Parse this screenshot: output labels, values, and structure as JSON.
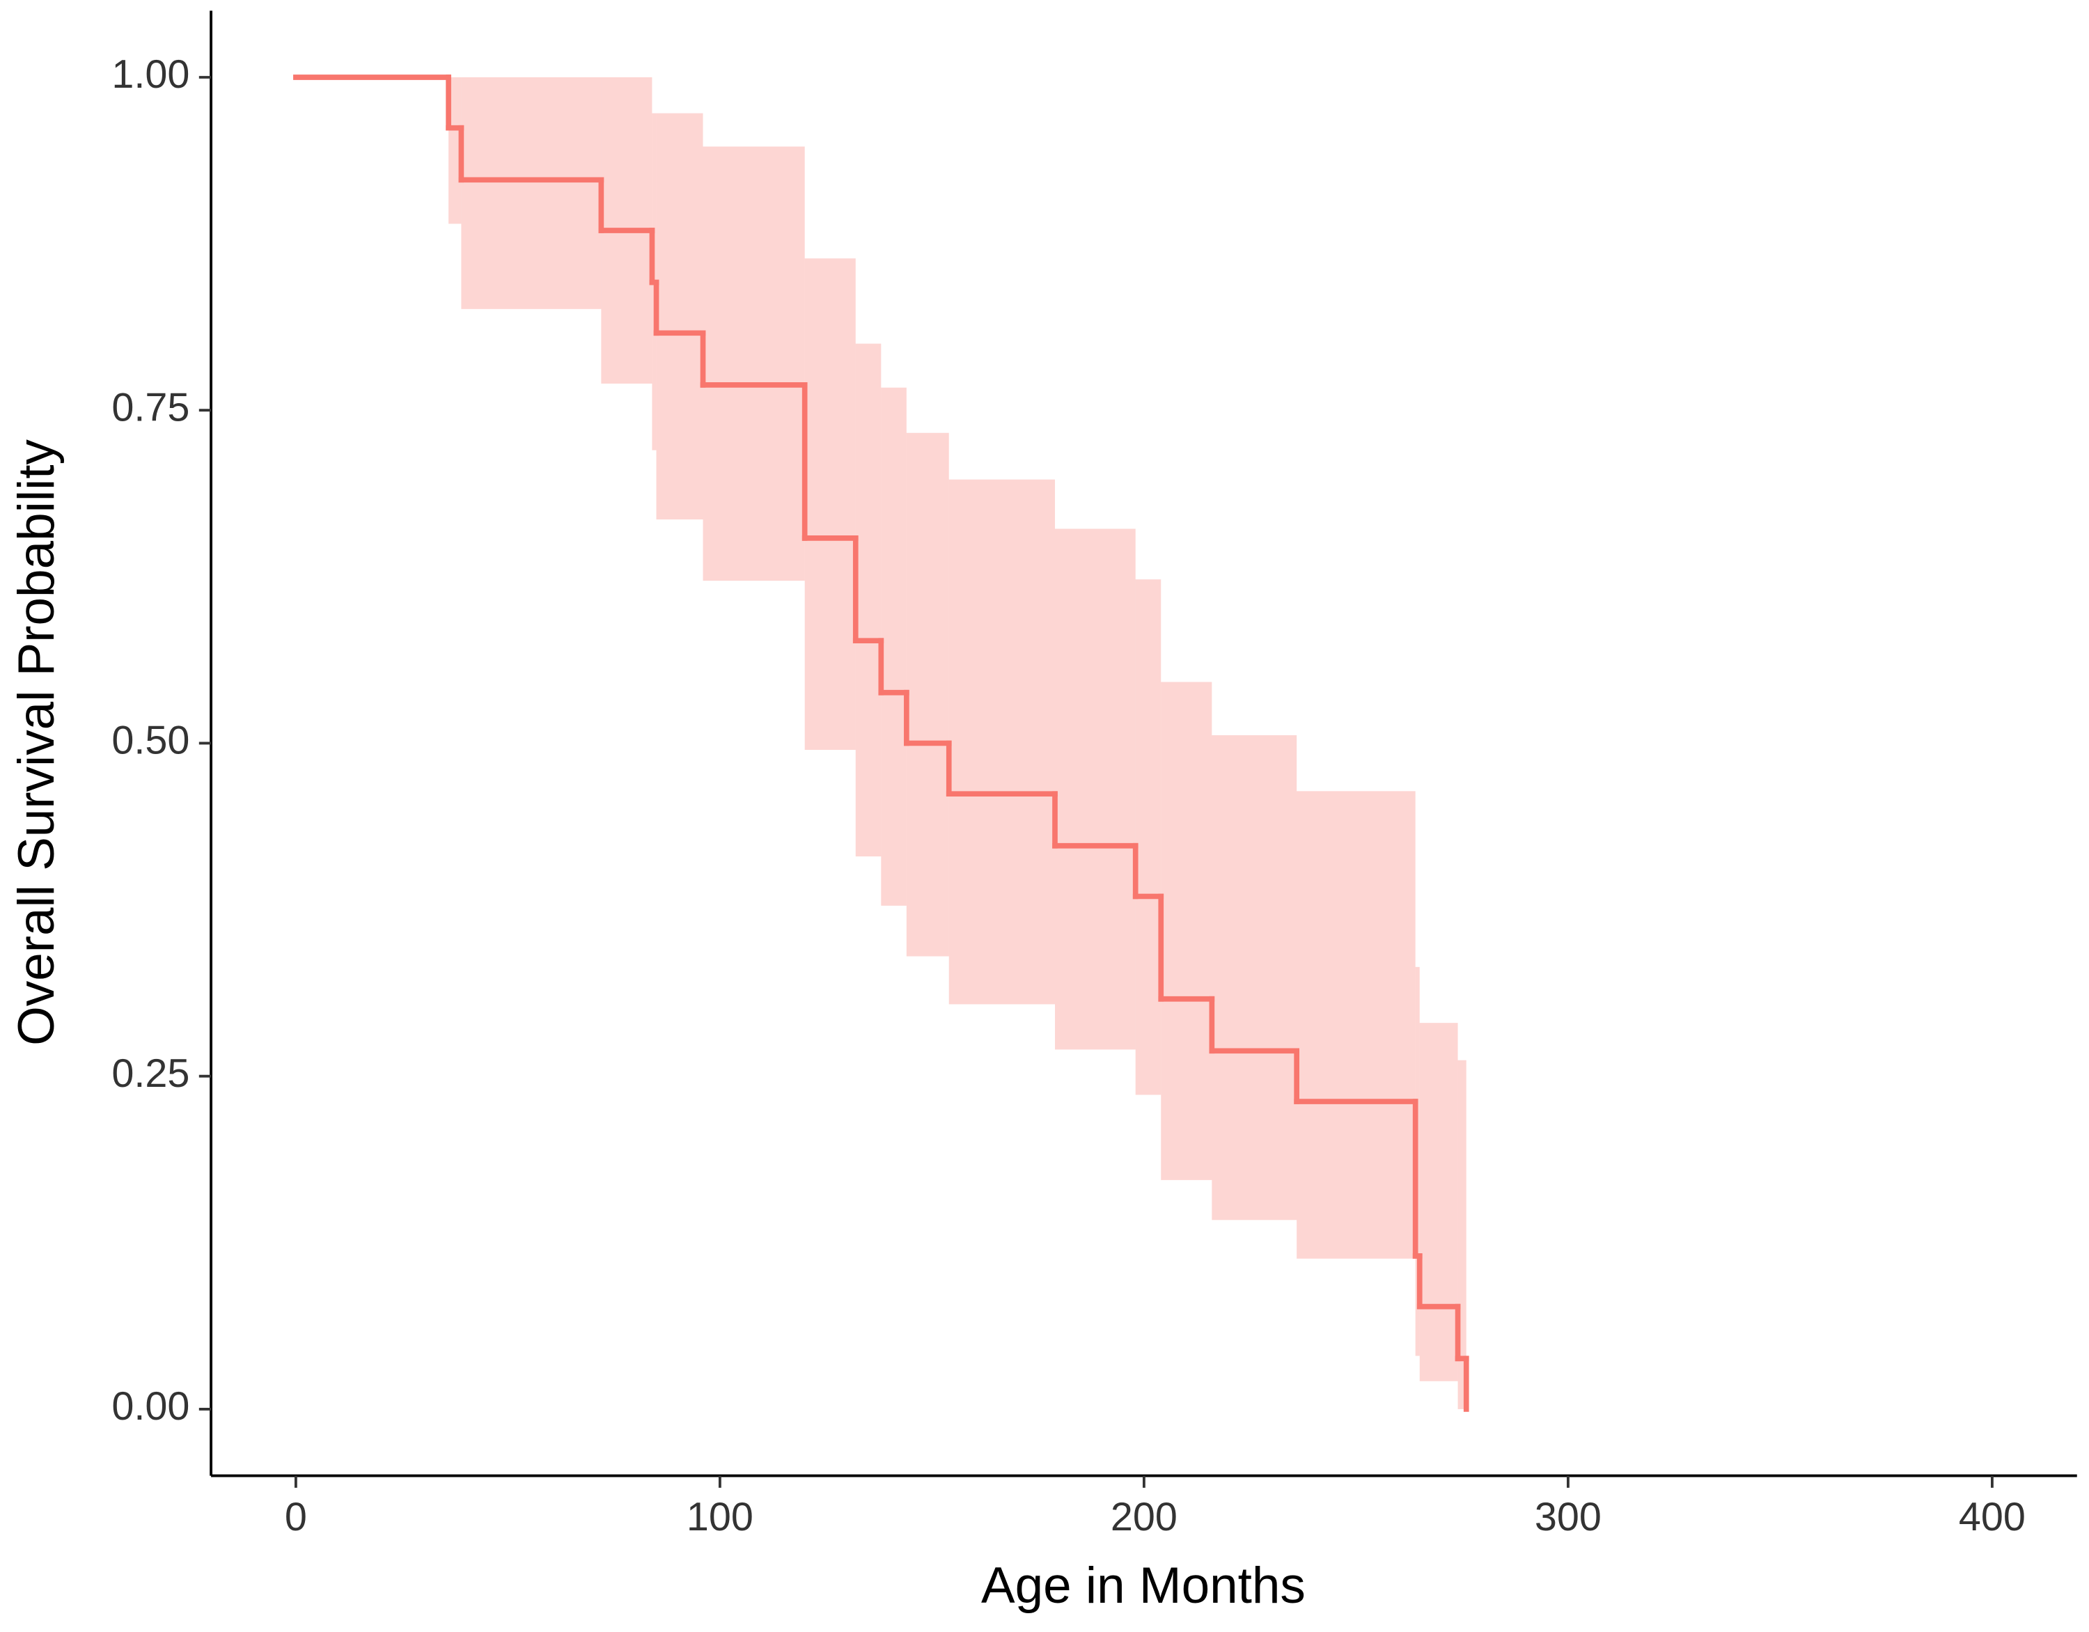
{
  "chart_data": {
    "type": "step",
    "x_label": "Age in Months",
    "y_label": "Overall Survival Probability",
    "xlim": [
      -20,
      420
    ],
    "ylim": [
      -0.05,
      1.05
    ],
    "xticks": [
      0,
      100,
      200,
      300,
      400
    ],
    "yticks": [
      {
        "value": 0,
        "label": "0.00"
      },
      {
        "value": 0.25,
        "label": "0.25"
      },
      {
        "value": 0.5,
        "label": "0.50"
      },
      {
        "value": 0.75,
        "label": "0.75"
      },
      {
        "value": 1,
        "label": "1.00"
      }
    ],
    "color": "#F8766D",
    "x": [
      0,
      36,
      39,
      72,
      84,
      85,
      96,
      120,
      132,
      138,
      144,
      154,
      179,
      198,
      204,
      216,
      236,
      264,
      265,
      274,
      276
    ],
    "values": [
      1,
      0.962,
      0.923,
      0.885,
      0.846,
      0.808,
      0.769,
      0.654,
      0.577,
      0.538,
      0.5,
      0.462,
      0.423,
      0.385,
      0.308,
      0.269,
      0.231,
      0.115,
      0.077,
      0.038,
      0
    ],
    "upper": [
      1,
      1,
      1,
      1,
      0.973,
      0.973,
      0.948,
      0.864,
      0.8,
      0.767,
      0.733,
      0.698,
      0.661,
      0.623,
      0.546,
      0.506,
      0.464,
      0.332,
      0.29,
      0.262,
      null
    ],
    "lower": [
      1,
      0.89,
      0.826,
      0.77,
      0.72,
      0.668,
      0.622,
      0.495,
      0.415,
      0.378,
      0.34,
      0.304,
      0.27,
      0.236,
      0.172,
      0.142,
      0.113,
      0.04,
      0.021,
      0,
      null
    ]
  }
}
